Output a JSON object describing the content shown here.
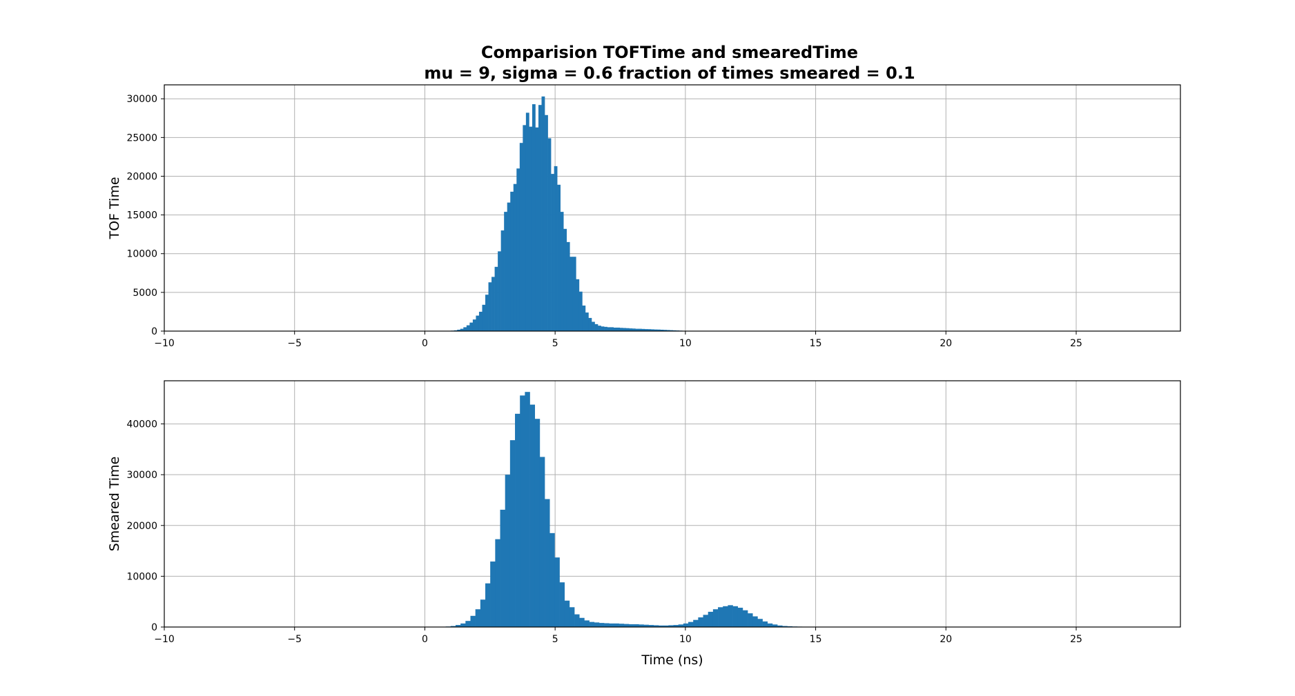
{
  "figure_title": {
    "line1": "Comparision TOFTime and smearedTime",
    "line2": "mu = 9, sigma = 0.6 fraction of times smeared = 0.1"
  },
  "bar_color": "#1f77b4",
  "chart_data": [
    {
      "type": "bar",
      "ylabel": "TOF Time",
      "xlabel": "",
      "grid": true,
      "xlim": [
        -10,
        29
      ],
      "ylim": [
        0,
        31800
      ],
      "xticks": [
        -10,
        -5,
        0,
        5,
        10,
        15,
        20,
        25
      ],
      "xtick_labels": [
        "−10",
        "−5",
        "0",
        "5",
        "10",
        "15",
        "20",
        "25"
      ],
      "yticks": [
        0,
        5000,
        10000,
        15000,
        20000,
        25000,
        30000
      ],
      "ytick_labels": [
        "0",
        "5000",
        "10000",
        "15000",
        "20000",
        "25000",
        "30000"
      ],
      "bin_width": 0.12,
      "bin_start": 1.0,
      "values": [
        60,
        100,
        180,
        300,
        500,
        750,
        1100,
        1500,
        2000,
        2500,
        3400,
        4700,
        6300,
        7000,
        8300,
        10300,
        13000,
        15400,
        16600,
        18000,
        19000,
        21000,
        24300,
        26600,
        28200,
        26400,
        29300,
        26300,
        29200,
        30300,
        27900,
        24900,
        20300,
        21300,
        18900,
        15400,
        13200,
        11500,
        9600,
        9600,
        6700,
        5100,
        3300,
        2400,
        1700,
        1200,
        900,
        700,
        600,
        550,
        500,
        500,
        450,
        450,
        420,
        400,
        380,
        350,
        330,
        300,
        300,
        280,
        260,
        250,
        230,
        210,
        200,
        180,
        160,
        140,
        120,
        100,
        80,
        60,
        40,
        25,
        15,
        8
      ]
    },
    {
      "type": "bar",
      "ylabel": "Smeared Time",
      "xlabel": "Time (ns)",
      "grid": true,
      "xlim": [
        -10,
        29
      ],
      "ylim": [
        0,
        48500
      ],
      "xticks": [
        -10,
        -5,
        0,
        5,
        10,
        15,
        20,
        25
      ],
      "xtick_labels": [
        "−10",
        "−5",
        "0",
        "5",
        "10",
        "15",
        "20",
        "25"
      ],
      "yticks": [
        0,
        10000,
        20000,
        30000,
        40000
      ],
      "ytick_labels": [
        "0",
        "10000",
        "20000",
        "30000",
        "40000"
      ],
      "bin_width": 0.19,
      "bin_start": 0.8,
      "values": [
        100,
        200,
        400,
        700,
        1200,
        2200,
        3500,
        5400,
        8600,
        12900,
        17300,
        23100,
        30000,
        36800,
        42000,
        45600,
        46300,
        43800,
        41000,
        33500,
        25200,
        18500,
        13700,
        8800,
        5200,
        3900,
        2500,
        1800,
        1300,
        1000,
        900,
        800,
        750,
        700,
        700,
        650,
        600,
        550,
        550,
        500,
        450,
        400,
        350,
        300,
        300,
        350,
        400,
        500,
        700,
        1000,
        1400,
        1900,
        2400,
        3000,
        3500,
        3900,
        4100,
        4300,
        4100,
        3800,
        3300,
        2700,
        2100,
        1600,
        1100,
        700,
        500,
        300,
        200,
        150,
        100,
        80,
        60,
        40,
        30,
        30,
        20,
        20,
        20,
        10,
        10,
        10,
        10,
        5,
        5,
        5
      ]
    }
  ]
}
